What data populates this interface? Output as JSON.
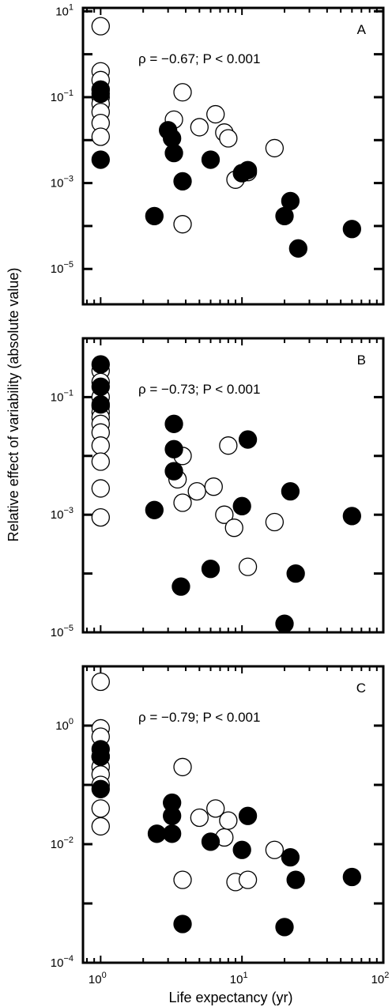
{
  "figure": {
    "ylabel": "Relative effect of variability (absolute value)",
    "xlabel": "Life expectancy (yr)"
  },
  "chart_data": [
    {
      "type": "scatter",
      "panel": "A",
      "annotation": "ρ = −0.67; P < 0.001",
      "xscale": "log",
      "yscale": "log",
      "xlim": [
        0.75,
        100
      ],
      "ylim": [
        1.5e-06,
        12
      ],
      "x_ticks": [
        {
          "value": 1,
          "label": "10^0"
        },
        {
          "value": 10,
          "label": "10^1"
        },
        {
          "value": 100,
          "label": "10^2"
        }
      ],
      "y_ticks": [
        {
          "value": 10,
          "label": "10^1"
        },
        {
          "value": 0.1,
          "label": "10^-1"
        },
        {
          "value": 0.001,
          "label": "10^-3"
        },
        {
          "value": 1e-05,
          "label": "10^-5"
        }
      ],
      "series": [
        {
          "marker": "open",
          "color": "#ffffff",
          "x": [
            1,
            1,
            1,
            1,
            1,
            1,
            1,
            1,
            1,
            3.3,
            3.8,
            5,
            6.5,
            7.5,
            8,
            9,
            11,
            17,
            3.8
          ],
          "y": [
            4.5,
            0.4,
            0.25,
            0.15,
            0.1,
            0.07,
            0.045,
            0.025,
            0.012,
            0.03,
            0.13,
            0.02,
            0.04,
            0.015,
            0.011,
            0.0012,
            0.0018,
            0.0065,
            0.00011
          ]
        },
        {
          "marker": "filled",
          "color": "#000000",
          "x": [
            1,
            1,
            1,
            3,
            3.2,
            3.3,
            3.8,
            6,
            10,
            11,
            2.4,
            20,
            22,
            25,
            60
          ],
          "y": [
            0.15,
            0.12,
            0.0035,
            0.017,
            0.011,
            0.005,
            0.0011,
            0.0035,
            0.0017,
            0.002,
            0.00017,
            0.00017,
            0.00038,
            3e-05,
            8.5e-05
          ]
        }
      ]
    },
    {
      "type": "scatter",
      "panel": "B",
      "annotation": "ρ = −0.73; P < 0.001",
      "xscale": "log",
      "yscale": "log",
      "xlim": [
        0.75,
        100
      ],
      "ylim": [
        1e-05,
        1
      ],
      "x_ticks": [
        {
          "value": 1,
          "label": "10^0"
        },
        {
          "value": 10,
          "label": "10^1"
        },
        {
          "value": 100,
          "label": "10^2"
        }
      ],
      "y_ticks": [
        {
          "value": 0.1,
          "label": "10^-1"
        },
        {
          "value": 0.001,
          "label": "10^-3"
        },
        {
          "value": 1e-05,
          "label": "10^-5"
        }
      ],
      "series": [
        {
          "marker": "open",
          "color": "#ffffff",
          "x": [
            1,
            1,
            1,
            1,
            1,
            1,
            1,
            1,
            1,
            1,
            1,
            1,
            3.8,
            3.5,
            3.8,
            4.8,
            6.3,
            7.5,
            8,
            8.8,
            11,
            17
          ],
          "y": [
            0.28,
            0.18,
            0.1,
            0.07,
            0.055,
            0.045,
            0.035,
            0.025,
            0.015,
            0.008,
            0.0028,
            0.0009,
            0.01,
            0.004,
            0.0016,
            0.0025,
            0.003,
            0.001,
            0.015,
            0.0006,
            0.00013,
            0.00075
          ]
        },
        {
          "marker": "filled",
          "color": "#000000",
          "x": [
            1,
            1,
            1,
            3.3,
            3.3,
            3.3,
            2.4,
            3.7,
            6,
            10,
            11,
            20,
            22,
            24,
            60
          ],
          "y": [
            0.36,
            0.15,
            0.075,
            0.035,
            0.013,
            0.0055,
            0.0012,
            6e-05,
            0.00012,
            0.0014,
            0.019,
            1.4e-05,
            0.0025,
            0.0001,
            0.00095
          ]
        }
      ]
    },
    {
      "type": "scatter",
      "panel": "C",
      "annotation": "ρ = −0.79; P < 0.001",
      "xscale": "log",
      "yscale": "log",
      "xlim": [
        0.75,
        100
      ],
      "ylim": [
        0.0001,
        10
      ],
      "x_ticks": [
        {
          "value": 1,
          "label": "10^0"
        },
        {
          "value": 10,
          "label": "10^1"
        },
        {
          "value": 100,
          "label": "10^2"
        }
      ],
      "y_ticks": [
        {
          "value": 1,
          "label": "10^0"
        },
        {
          "value": 0.01,
          "label": "10^-2"
        },
        {
          "value": 0.0001,
          "label": "10^-4"
        }
      ],
      "series": [
        {
          "marker": "open",
          "color": "#ffffff",
          "x": [
            1,
            1,
            1,
            1,
            1,
            1,
            1,
            1,
            1,
            1,
            3.8,
            3.8,
            5,
            6.5,
            7.5,
            8,
            9,
            11,
            17
          ],
          "y": [
            5.5,
            0.9,
            0.65,
            0.3,
            0.2,
            0.15,
            0.1,
            0.04,
            0.02,
            0.3,
            0.2,
            0.0025,
            0.028,
            0.04,
            0.013,
            0.025,
            0.0023,
            0.0025,
            0.008
          ]
        },
        {
          "marker": "filled",
          "color": "#000000",
          "x": [
            1,
            1,
            1,
            3.2,
            3.2,
            3.2,
            2.5,
            3.8,
            6,
            10,
            11,
            20,
            22,
            24,
            60
          ],
          "y": [
            0.4,
            0.3,
            0.085,
            0.05,
            0.03,
            0.015,
            0.015,
            0.00045,
            0.011,
            0.008,
            0.03,
            0.0004,
            0.006,
            0.0025,
            0.0028
          ]
        }
      ]
    }
  ]
}
